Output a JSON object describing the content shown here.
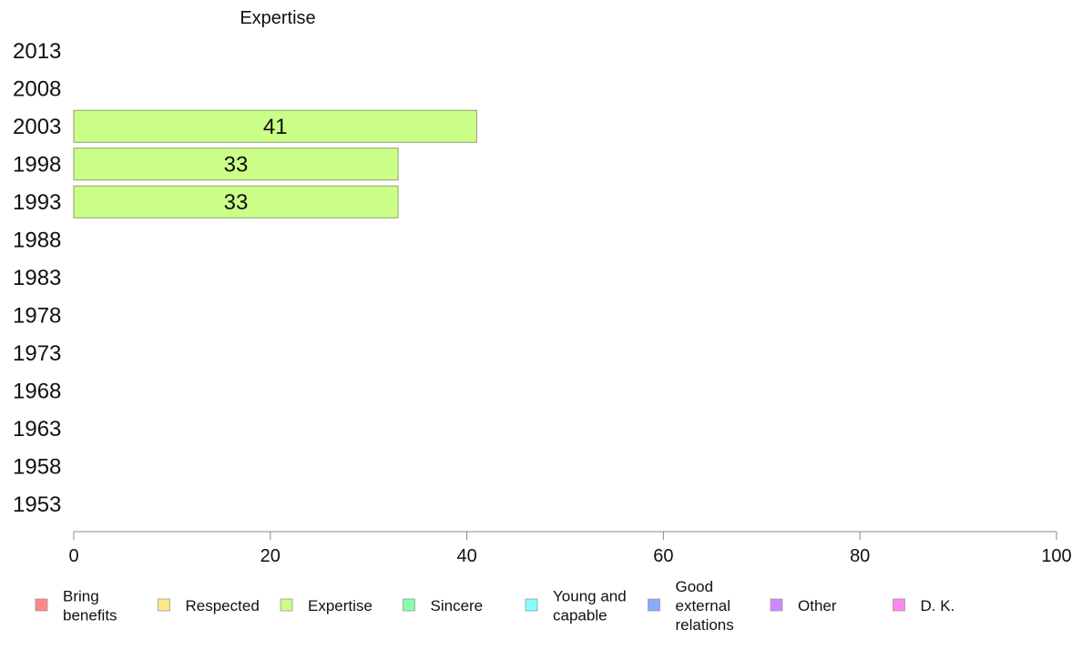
{
  "chart_data": {
    "type": "bar",
    "orientation": "horizontal",
    "title": "Expertise",
    "categories": [
      "2013",
      "2008",
      "2003",
      "1998",
      "1993",
      "1988",
      "1983",
      "1978",
      "1973",
      "1968",
      "1963",
      "1958",
      "1953"
    ],
    "series": [
      {
        "name": "Expertise",
        "color": "#ccff88",
        "values": [
          null,
          null,
          41,
          33,
          33,
          null,
          null,
          null,
          null,
          null,
          null,
          null,
          null
        ]
      }
    ],
    "data_labels": [
      "",
      "",
      "41",
      "33",
      "33",
      "",
      "",
      "",
      "",
      "",
      "",
      "",
      ""
    ],
    "xlim": [
      0,
      100
    ],
    "xticks": [
      0,
      20,
      40,
      60,
      80,
      100
    ],
    "xtick_labels": [
      "0",
      "20",
      "40",
      "60",
      "80",
      "100"
    ],
    "grid": false,
    "legend_position": "bottom",
    "legend": [
      {
        "label": "Bring benefits",
        "lines": [
          "Bring",
          "benefits"
        ],
        "color": "#ff8888"
      },
      {
        "label": "Respected",
        "lines": [
          "Respected"
        ],
        "color": "#ffe888"
      },
      {
        "label": "Expertise",
        "lines": [
          "Expertise"
        ],
        "color": "#ccff88"
      },
      {
        "label": "Sincere",
        "lines": [
          "Sincere"
        ],
        "color": "#88ffaa"
      },
      {
        "label": "Young and capable",
        "lines": [
          "Young and",
          "capable"
        ],
        "color": "#88ffff"
      },
      {
        "label": "Good external relations",
        "lines": [
          "Good",
          "external",
          "relations"
        ],
        "color": "#88aaff"
      },
      {
        "label": "Other",
        "lines": [
          "Other"
        ],
        "color": "#cc88ff"
      },
      {
        "label": "D. K.",
        "lines": [
          "D. K."
        ],
        "color": "#ff88ee"
      }
    ]
  }
}
